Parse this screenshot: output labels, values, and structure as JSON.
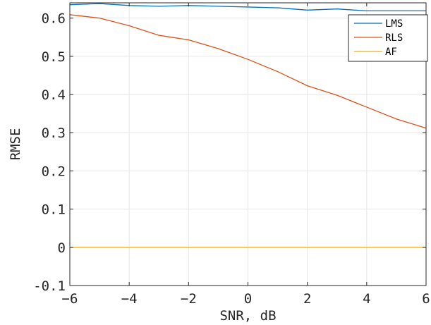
{
  "chart_data": {
    "type": "line",
    "title": "",
    "xlabel": "SNR, dB",
    "ylabel": "RMSE",
    "xlim": [
      -6,
      6
    ],
    "ylim": [
      -0.1,
      0.64
    ],
    "x_ticks": [
      -6,
      -4,
      -2,
      0,
      2,
      4,
      6
    ],
    "y_ticks": [
      -0.1,
      0,
      0.1,
      0.2,
      0.3,
      0.4,
      0.5,
      0.6
    ],
    "x_tick_labels": [
      "−6",
      "−4",
      "−2",
      "0",
      "2",
      "4",
      "6"
    ],
    "y_tick_labels": [
      "-0.1",
      "0",
      "0.1",
      "0.2",
      "0.3",
      "0.4",
      "0.5",
      "0.6"
    ],
    "grid": true,
    "legend_position": "top-right",
    "x": [
      -6,
      -5,
      -4,
      -3,
      -2,
      -1,
      0,
      1,
      2,
      3,
      4,
      5,
      6
    ],
    "series": [
      {
        "name": "LMS",
        "color": "#0072BD",
        "values": [
          0.635,
          0.638,
          0.633,
          0.631,
          0.633,
          0.631,
          0.629,
          0.627,
          0.621,
          0.624,
          0.619,
          0.619,
          0.619
        ]
      },
      {
        "name": "RLS",
        "color": "#D95319",
        "values": [
          0.609,
          0.6,
          0.58,
          0.555,
          0.543,
          0.52,
          0.492,
          0.46,
          0.423,
          0.398,
          0.367,
          0.336,
          0.312
        ]
      },
      {
        "name": "AF",
        "color": "#EDB120",
        "values": [
          0,
          0,
          0,
          0,
          0,
          0,
          0,
          0,
          0,
          0,
          0,
          0,
          0
        ]
      }
    ]
  }
}
